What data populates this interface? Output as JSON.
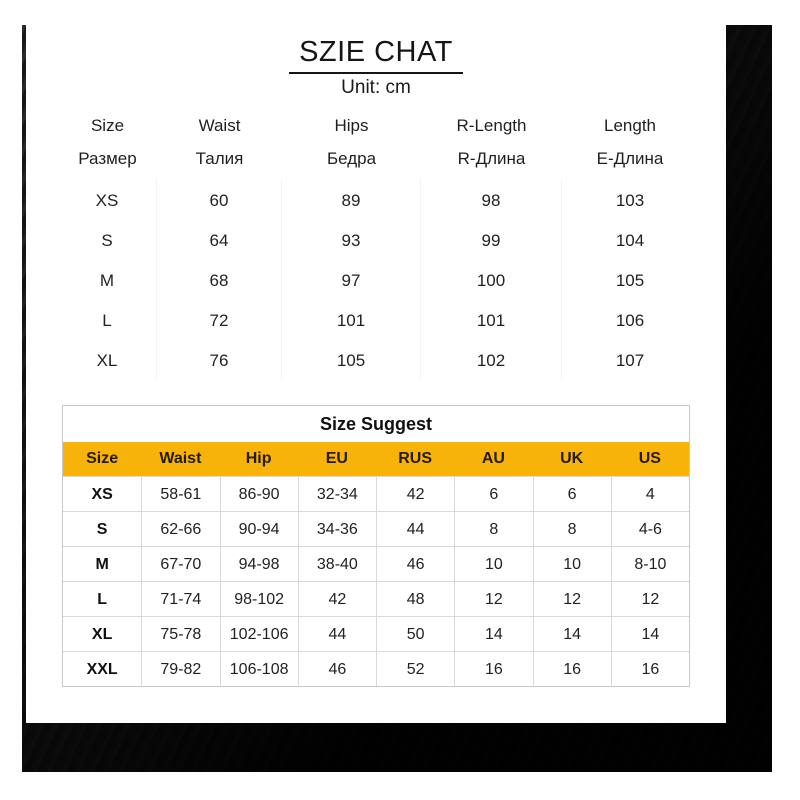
{
  "page": {
    "title": "SZIE CHAT",
    "unit_label": "Unit: cm"
  },
  "colors": {
    "accent_yellow": "#F7B30A",
    "frame_dark": "#141414",
    "card_bg": "#ffffff"
  },
  "measure_table": {
    "headers": [
      {
        "en": "Size",
        "ru": "Размер"
      },
      {
        "en": "Waist",
        "ru": "Талия"
      },
      {
        "en": "Hips",
        "ru": "Бедра"
      },
      {
        "en": "R-Length",
        "ru": "R-Длина"
      },
      {
        "en": "Length",
        "ru": "Е-Длина"
      }
    ],
    "rows": [
      [
        "XS",
        "60",
        "89",
        "98",
        "103"
      ],
      [
        "S",
        "64",
        "93",
        "99",
        "104"
      ],
      [
        "M",
        "68",
        "97",
        "100",
        "105"
      ],
      [
        "L",
        "72",
        "101",
        "101",
        "106"
      ],
      [
        "XL",
        "76",
        "105",
        "102",
        "107"
      ]
    ]
  },
  "suggest_table": {
    "title": "Size Suggest",
    "headers": [
      "Size",
      "Waist",
      "Hip",
      "EU",
      "RUS",
      "AU",
      "UK",
      "US"
    ],
    "rows": [
      [
        "XS",
        "58-61",
        "86-90",
        "32-34",
        "42",
        "6",
        "6",
        "4"
      ],
      [
        "S",
        "62-66",
        "90-94",
        "34-36",
        "44",
        "8",
        "8",
        "4-6"
      ],
      [
        "M",
        "67-70",
        "94-98",
        "38-40",
        "46",
        "10",
        "10",
        "8-10"
      ],
      [
        "L",
        "71-74",
        "98-102",
        "42",
        "48",
        "12",
        "12",
        "12"
      ],
      [
        "XL",
        "75-78",
        "102-106",
        "44",
        "50",
        "14",
        "14",
        "14"
      ],
      [
        "XXL",
        "79-82",
        "106-108",
        "46",
        "52",
        "16",
        "16",
        "16"
      ]
    ]
  }
}
